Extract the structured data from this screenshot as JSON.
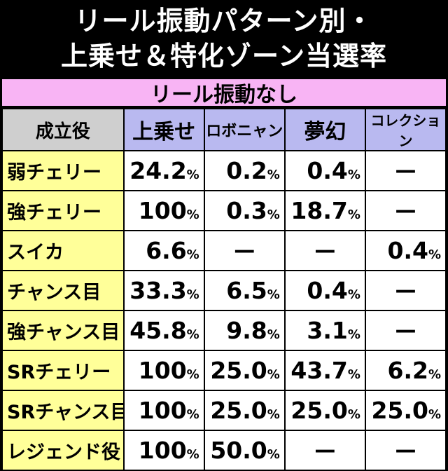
{
  "title": {
    "line1": "リール振動パターン別・",
    "line2": "上乗せ＆特化ゾーン当選率"
  },
  "section": "リール振動なし",
  "headers": [
    "成立役",
    "上乗せ",
    "ロボニャン",
    "夢幻",
    "コレクション"
  ],
  "rows": [
    {
      "role": "弱チェリー",
      "values": [
        "24.2",
        "0.2",
        "0.4",
        "—"
      ]
    },
    {
      "role": "強チェリー",
      "values": [
        "100",
        "0.3",
        "18.7",
        "—"
      ]
    },
    {
      "role": "スイカ",
      "values": [
        "6.6",
        "—",
        "—",
        "0.4"
      ]
    },
    {
      "role": "チャンス目",
      "values": [
        "33.3",
        "6.5",
        "0.4",
        "—"
      ]
    },
    {
      "role": "強チャンス目",
      "values": [
        "45.8",
        "9.8",
        "3.1",
        "—"
      ]
    },
    {
      "role": "SRチェリー",
      "values": [
        "100",
        "25.0",
        "43.7",
        "6.2"
      ]
    },
    {
      "role": "SRチャンス目",
      "values": [
        "100",
        "25.0",
        "25.0",
        "25.0"
      ]
    },
    {
      "role": "レジェンド役",
      "values": [
        "100",
        "50.0",
        "—",
        "—"
      ]
    }
  ],
  "unit": "%",
  "colors": {
    "section_bg": "#f8b4f4",
    "header_col_bg": "#b9b9f0",
    "header_role_bg": "#cfcfcf",
    "role_bg": "#ffff99"
  }
}
